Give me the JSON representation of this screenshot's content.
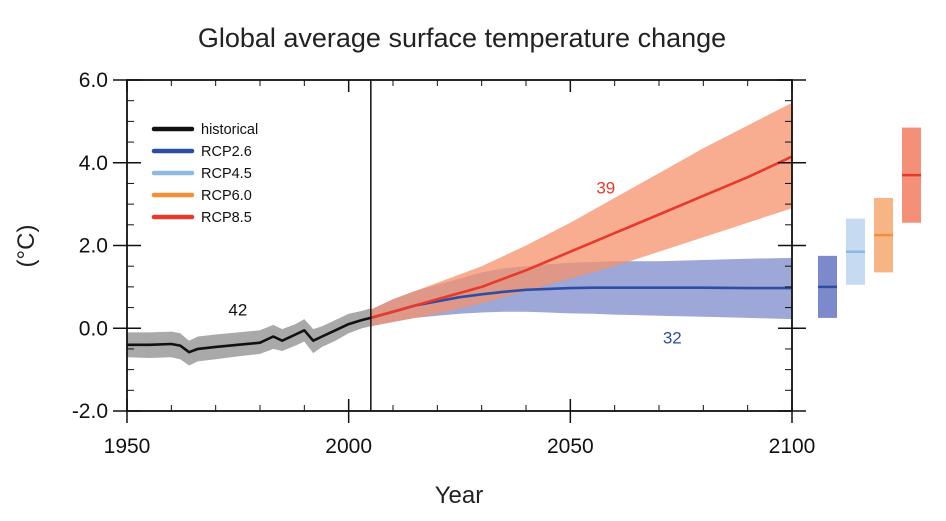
{
  "chart_data": {
    "type": "line",
    "title": "Global average surface temperature change",
    "xlabel": "Year",
    "ylabel": "(°C)",
    "xlim": [
      1950,
      2100
    ],
    "ylim": [
      -2.0,
      6.0
    ],
    "x_ticks": [
      1950,
      2000,
      2050,
      2100
    ],
    "x_tick_labels": [
      "1950",
      "2000",
      "2050",
      "2100"
    ],
    "y_ticks": [
      -2.0,
      0.0,
      2.0,
      4.0,
      6.0
    ],
    "y_tick_labels": [
      "-2.0",
      "0.0",
      "2.0",
      "4.0",
      "6.0"
    ],
    "divider_year": 2005,
    "legend": {
      "position": "top-left",
      "entries": [
        {
          "label": "historical",
          "color": "#111111"
        },
        {
          "label": "RCP2.6",
          "color": "#2E4EA3"
        },
        {
          "label": "RCP4.5",
          "color": "#8DB9E2"
        },
        {
          "label": "RCP6.0",
          "color": "#F0903A"
        },
        {
          "label": "RCP8.5",
          "color": "#E8392A"
        }
      ]
    },
    "series": [
      {
        "name": "historical",
        "color": "#111111",
        "band_color": "#8c8c8c",
        "x": [
          1950,
          1955,
          1960,
          1962,
          1964,
          1966,
          1970,
          1975,
          1980,
          1983,
          1985,
          1988,
          1990,
          1992,
          1994,
          1997,
          2000,
          2003,
          2005
        ],
        "y": [
          -0.4,
          -0.4,
          -0.38,
          -0.42,
          -0.58,
          -0.5,
          -0.45,
          -0.4,
          -0.35,
          -0.2,
          -0.3,
          -0.15,
          -0.05,
          -0.3,
          -0.2,
          -0.05,
          0.1,
          0.2,
          0.25
        ],
        "lower": [
          -0.7,
          -0.72,
          -0.7,
          -0.75,
          -0.9,
          -0.8,
          -0.75,
          -0.68,
          -0.62,
          -0.5,
          -0.55,
          -0.42,
          -0.32,
          -0.6,
          -0.45,
          -0.3,
          -0.12,
          0.0,
          0.05
        ],
        "upper": [
          -0.1,
          -0.1,
          -0.08,
          -0.12,
          -0.3,
          -0.2,
          -0.15,
          -0.1,
          -0.05,
          0.08,
          -0.02,
          0.1,
          0.22,
          -0.02,
          0.05,
          0.2,
          0.35,
          0.42,
          0.48
        ],
        "count_label": "42",
        "count_at": [
          1975,
          0.45
        ]
      },
      {
        "name": "RCP2.6",
        "color": "#2E4EA3",
        "band_color": "#7C8ACB",
        "x": [
          2005,
          2010,
          2015,
          2020,
          2025,
          2030,
          2035,
          2040,
          2045,
          2050,
          2055,
          2060,
          2070,
          2080,
          2090,
          2100
        ],
        "y": [
          0.25,
          0.4,
          0.55,
          0.65,
          0.75,
          0.82,
          0.88,
          0.93,
          0.95,
          0.97,
          0.98,
          0.98,
          0.98,
          0.98,
          0.97,
          0.97
        ],
        "lower": [
          0.05,
          0.15,
          0.25,
          0.3,
          0.35,
          0.38,
          0.4,
          0.4,
          0.38,
          0.36,
          0.35,
          0.33,
          0.3,
          0.28,
          0.25,
          0.22
        ],
        "upper": [
          0.45,
          0.7,
          0.9,
          1.05,
          1.2,
          1.35,
          1.45,
          1.5,
          1.55,
          1.58,
          1.6,
          1.62,
          1.62,
          1.65,
          1.68,
          1.7
        ],
        "count_label": "32",
        "count_at": [
          2073,
          -0.22
        ]
      },
      {
        "name": "RCP8.5",
        "color": "#E8392A",
        "band_color": "#F5926C",
        "x": [
          2005,
          2010,
          2020,
          2030,
          2040,
          2050,
          2060,
          2070,
          2080,
          2090,
          2100
        ],
        "y": [
          0.25,
          0.4,
          0.7,
          1.0,
          1.4,
          1.85,
          2.3,
          2.75,
          3.2,
          3.65,
          4.15
        ],
        "lower": [
          0.05,
          0.15,
          0.35,
          0.6,
          0.9,
          1.2,
          1.5,
          1.85,
          2.2,
          2.55,
          2.9
        ],
        "upper": [
          0.45,
          0.7,
          1.1,
          1.5,
          2.0,
          2.55,
          3.15,
          3.75,
          4.35,
          4.9,
          5.45
        ],
        "count_label": "39",
        "count_at": [
          2058,
          3.4
        ]
      }
    ],
    "end_bars": [
      {
        "name": "RCP2.6",
        "low": 0.25,
        "mean": 1.0,
        "high": 1.75,
        "color": "#7C8ACB",
        "mean_color": "#2E4EA3"
      },
      {
        "name": "RCP4.5",
        "low": 1.05,
        "mean": 1.85,
        "high": 2.65,
        "color": "#C6DAF2",
        "mean_color": "#8DB9E2"
      },
      {
        "name": "RCP6.0",
        "low": 1.35,
        "mean": 2.25,
        "high": 3.15,
        "color": "#F7B585",
        "mean_color": "#F0903A"
      },
      {
        "name": "RCP8.5",
        "low": 2.55,
        "mean": 3.7,
        "high": 4.85,
        "color": "#F49077",
        "mean_color": "#E8392A"
      }
    ]
  }
}
